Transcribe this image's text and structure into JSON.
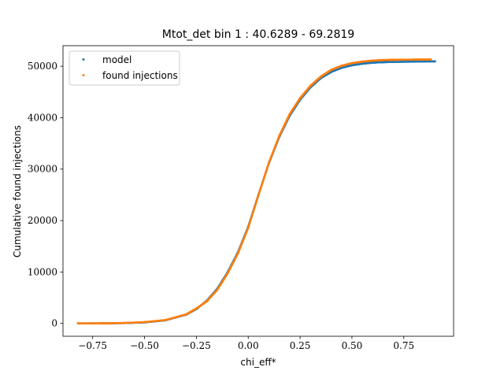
{
  "chart_data": {
    "type": "scatter",
    "title": "Mtot_det bin 1 : 40.6289 - 69.2819",
    "xlabel": "chi_eff*",
    "ylabel": "Cumulative found injections",
    "xlim": [
      -0.893,
      0.99
    ],
    "ylim": [
      -2500,
      54000
    ],
    "xticks": [
      -0.75,
      -0.5,
      -0.25,
      0.0,
      0.25,
      0.5,
      0.75
    ],
    "xtick_labels": [
      "−0.75",
      "−0.50",
      "−0.25",
      "0.00",
      "0.25",
      "0.50",
      "0.75"
    ],
    "yticks": [
      0,
      10000,
      20000,
      30000,
      40000,
      50000
    ],
    "ytick_labels": [
      "0",
      "10000",
      "20000",
      "30000",
      "40000",
      "50000"
    ],
    "grid": false,
    "legend_position": "top-left",
    "series": [
      {
        "name": "model",
        "color": "#1f77b4",
        "x": [
          -0.82,
          -0.75,
          -0.7,
          -0.6,
          -0.5,
          -0.4,
          -0.3,
          -0.25,
          -0.2,
          -0.15,
          -0.1,
          -0.05,
          0.0,
          0.05,
          0.1,
          0.15,
          0.2,
          0.25,
          0.3,
          0.35,
          0.4,
          0.45,
          0.5,
          0.55,
          0.6,
          0.65,
          0.7,
          0.8,
          0.9
        ],
        "y": [
          0,
          0,
          10,
          60,
          200,
          600,
          1700,
          2800,
          4400,
          6700,
          9900,
          13800,
          18800,
          25100,
          31200,
          36300,
          40400,
          43500,
          45900,
          47700,
          48900,
          49700,
          50200,
          50500,
          50700,
          50800,
          50850,
          50900,
          50950
        ]
      },
      {
        "name": "found injections",
        "color": "#ff7f0e",
        "x": [
          -0.82,
          -0.75,
          -0.7,
          -0.6,
          -0.5,
          -0.4,
          -0.3,
          -0.25,
          -0.2,
          -0.15,
          -0.1,
          -0.05,
          0.0,
          0.05,
          0.1,
          0.15,
          0.2,
          0.25,
          0.3,
          0.35,
          0.4,
          0.45,
          0.5,
          0.55,
          0.6,
          0.65,
          0.7,
          0.8,
          0.88
        ],
        "y": [
          0,
          0,
          15,
          80,
          250,
          650,
          1750,
          2900,
          4300,
          6500,
          9700,
          13600,
          18600,
          25000,
          31300,
          36500,
          40700,
          43800,
          46200,
          48000,
          49300,
          50100,
          50600,
          50900,
          51100,
          51200,
          51250,
          51300,
          51320
        ]
      }
    ]
  }
}
